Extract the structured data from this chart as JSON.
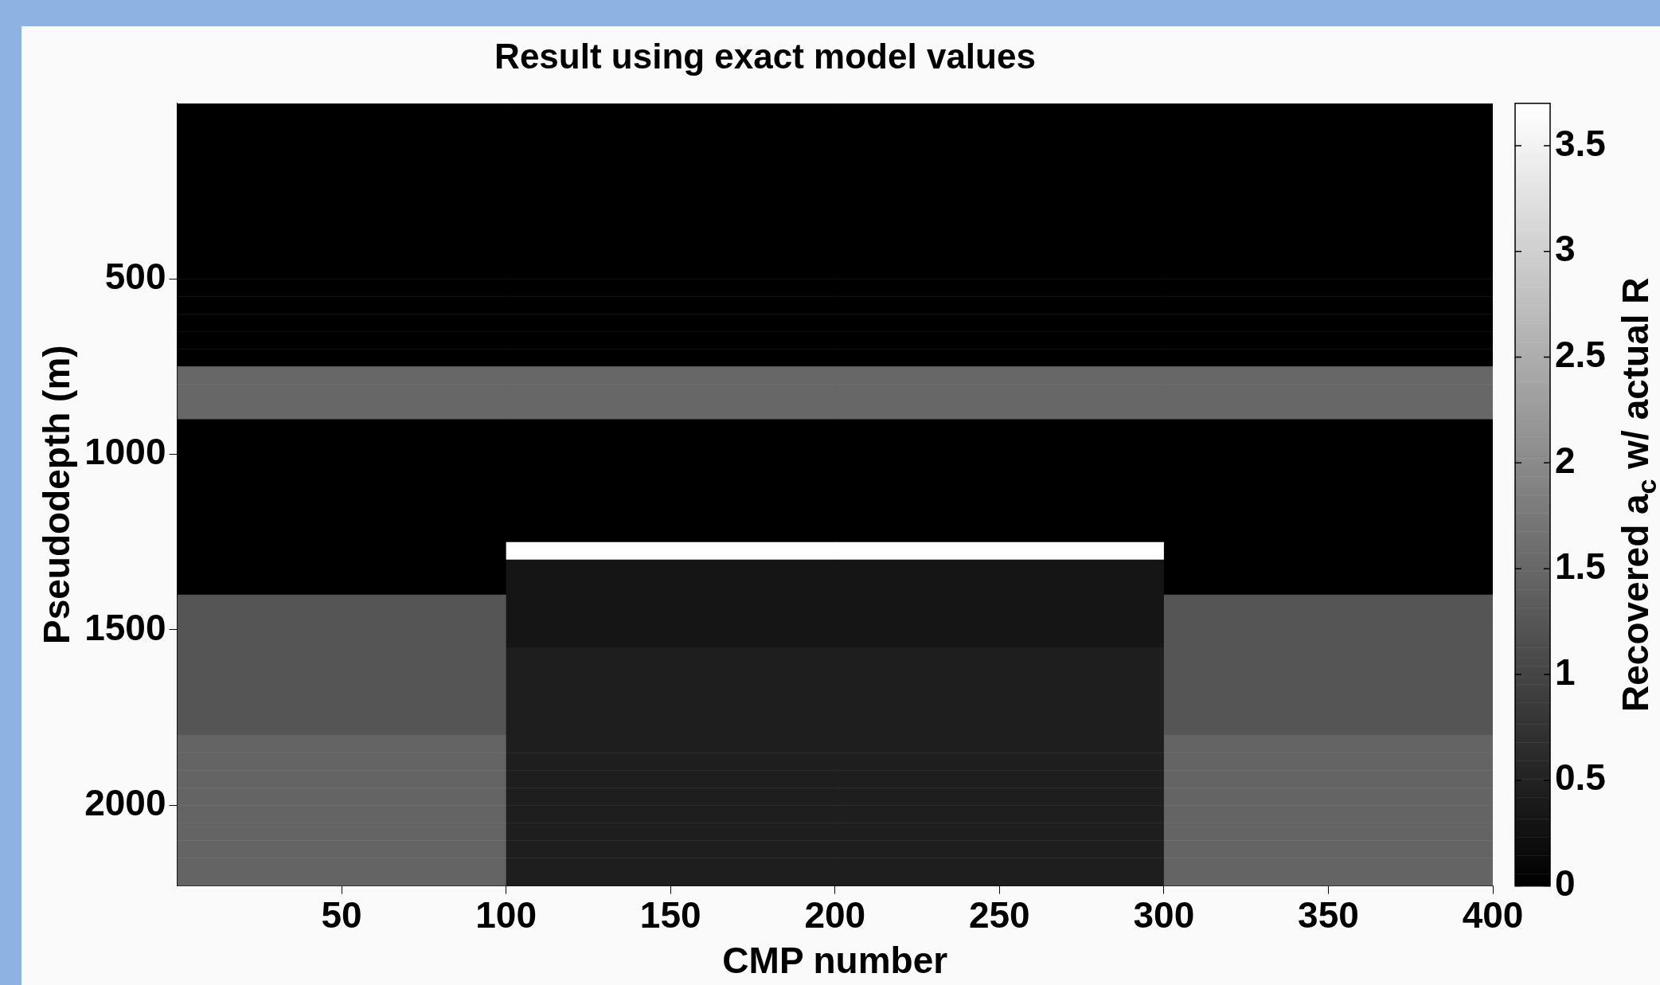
{
  "chart_data": {
    "type": "heatmap",
    "title": "Result using exact model values",
    "xlabel": "CMP number",
    "ylabel": "Pseudodepth (m)",
    "clabel": "Recovered a$_{c}$ w/ actual R",
    "x": [
      50,
      150,
      250,
      350
    ],
    "y": [
      25,
      75,
      125,
      175,
      225,
      275,
      325,
      375,
      425,
      475,
      525,
      575,
      625,
      675,
      725,
      775,
      825,
      875,
      925,
      975,
      1025,
      1075,
      1125,
      1175,
      1225,
      1275,
      1325,
      1375,
      1425,
      1475,
      1525,
      1575,
      1625,
      1675,
      1725,
      1775,
      1825,
      1875,
      1925,
      1975,
      2025,
      2075,
      2125,
      2175,
      2225
    ],
    "xlim": [
      0,
      400
    ],
    "xticks": [
      50,
      100,
      150,
      200,
      250,
      300,
      350,
      400
    ],
    "ylim": [
      2230,
      0
    ],
    "yticks": [
      500,
      1000,
      1500,
      2000
    ],
    "clim": [
      0,
      3.7
    ],
    "cticks": [
      0,
      0.5,
      1,
      1.5,
      2,
      2.5,
      3,
      3.5
    ],
    "cells": [
      [
        0,
        0,
        0,
        0
      ],
      [
        0,
        0,
        0,
        0
      ],
      [
        0,
        0,
        0,
        0
      ],
      [
        0,
        0,
        0,
        0
      ],
      [
        0,
        0,
        0,
        0
      ],
      [
        0,
        0,
        0,
        0
      ],
      [
        0,
        0,
        0,
        0
      ],
      [
        0,
        0,
        0,
        0
      ],
      [
        0,
        0,
        0,
        0
      ],
      [
        0,
        0,
        0,
        0
      ],
      [
        0,
        0,
        0,
        0
      ],
      [
        0,
        0,
        0,
        0
      ],
      [
        0,
        0,
        0,
        0
      ],
      [
        0,
        0,
        0,
        0
      ],
      [
        0,
        0,
        0,
        0
      ],
      [
        1.5,
        1.5,
        1.5,
        1.5
      ],
      [
        1.5,
        1.5,
        1.5,
        1.5
      ],
      [
        1.5,
        1.5,
        1.5,
        1.5
      ],
      [
        0,
        0,
        0,
        0
      ],
      [
        0,
        0,
        0,
        0
      ],
      [
        0,
        0,
        0,
        0
      ],
      [
        0,
        0,
        0,
        0
      ],
      [
        0,
        0,
        0,
        0
      ],
      [
        0,
        0,
        0,
        0
      ],
      [
        0,
        0,
        0,
        0
      ],
      [
        0,
        3.7,
        3.7,
        0
      ],
      [
        0,
        0.3,
        0.3,
        0
      ],
      [
        0,
        0.3,
        0.3,
        0
      ],
      [
        1.23,
        0.3,
        0.3,
        1.23
      ],
      [
        1.23,
        0.3,
        0.3,
        1.23
      ],
      [
        1.23,
        0.3,
        0.3,
        1.23
      ],
      [
        1.23,
        0.44,
        0.44,
        1.23
      ],
      [
        1.23,
        0.44,
        0.44,
        1.23
      ],
      [
        1.23,
        0.44,
        0.44,
        1.23
      ],
      [
        1.23,
        0.44,
        0.44,
        1.23
      ],
      [
        1.23,
        0.44,
        0.44,
        1.23
      ],
      [
        1.45,
        0.44,
        0.44,
        1.45
      ],
      [
        1.45,
        0.44,
        0.44,
        1.45
      ],
      [
        1.45,
        0.44,
        0.44,
        1.45
      ],
      [
        1.45,
        0.44,
        0.44,
        1.45
      ],
      [
        1.45,
        0.44,
        0.44,
        1.45
      ],
      [
        1.45,
        0.44,
        0.44,
        1.45
      ],
      [
        1.45,
        0.44,
        0.44,
        1.45
      ],
      [
        1.45,
        0.44,
        0.44,
        1.45
      ],
      [
        1.45,
        0.44,
        0.44,
        1.45
      ]
    ]
  }
}
